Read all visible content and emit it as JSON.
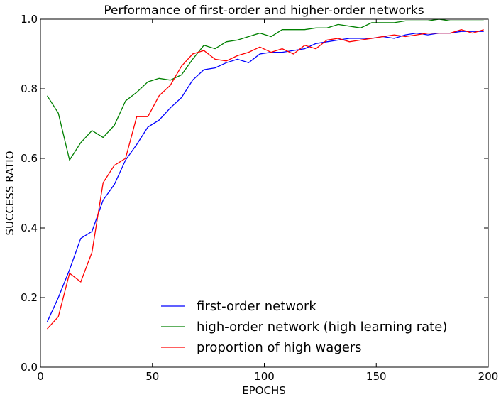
{
  "chart_data": {
    "type": "line",
    "title": "Performance of first-order and higher-order networks",
    "xlabel": "EPOCHS",
    "ylabel": "SUCCESS RATIO",
    "xlim": [
      0,
      200
    ],
    "ylim": [
      0.0,
      1.0
    ],
    "xticks": [
      "0",
      "50",
      "100",
      "150",
      "200"
    ],
    "yticks": [
      "0.0",
      "0.2",
      "0.4",
      "0.6",
      "0.8",
      "1.0"
    ],
    "grid": false,
    "legend_position": "bottom-center",
    "x": [
      3,
      8,
      13,
      18,
      23,
      28,
      33,
      38,
      43,
      48,
      53,
      58,
      63,
      68,
      73,
      78,
      83,
      88,
      93,
      98,
      103,
      108,
      113,
      118,
      123,
      128,
      133,
      138,
      143,
      148,
      153,
      158,
      163,
      168,
      173,
      178,
      183,
      188,
      193,
      198
    ],
    "series": [
      {
        "name": "first-order network",
        "color": "#0000ff",
        "values": [
          0.13,
          0.2,
          0.28,
          0.37,
          0.39,
          0.48,
          0.525,
          0.595,
          0.64,
          0.69,
          0.71,
          0.745,
          0.775,
          0.825,
          0.855,
          0.86,
          0.875,
          0.885,
          0.875,
          0.9,
          0.905,
          0.905,
          0.91,
          0.915,
          0.93,
          0.935,
          0.94,
          0.945,
          0.945,
          0.945,
          0.95,
          0.945,
          0.955,
          0.96,
          0.955,
          0.96,
          0.96,
          0.965,
          0.965,
          0.965
        ]
      },
      {
        "name": "high-order network (high learning rate)",
        "color": "#008000",
        "values": [
          0.78,
          0.73,
          0.595,
          0.645,
          0.68,
          0.66,
          0.695,
          0.765,
          0.79,
          0.82,
          0.83,
          0.825,
          0.84,
          0.885,
          0.925,
          0.915,
          0.935,
          0.94,
          0.95,
          0.96,
          0.95,
          0.97,
          0.97,
          0.97,
          0.975,
          0.975,
          0.985,
          0.98,
          0.975,
          0.99,
          0.99,
          0.99,
          0.995,
          0.995,
          0.995,
          1.0,
          0.995,
          0.995,
          0.995,
          0.995
        ]
      },
      {
        "name": "proportion of high wagers",
        "color": "#ff0000",
        "values": [
          0.11,
          0.145,
          0.27,
          0.245,
          0.33,
          0.53,
          0.58,
          0.6,
          0.72,
          0.72,
          0.78,
          0.81,
          0.865,
          0.9,
          0.91,
          0.885,
          0.88,
          0.895,
          0.905,
          0.92,
          0.905,
          0.915,
          0.9,
          0.925,
          0.915,
          0.94,
          0.945,
          0.935,
          0.94,
          0.945,
          0.95,
          0.955,
          0.95,
          0.955,
          0.96,
          0.96,
          0.96,
          0.97,
          0.96,
          0.97
        ]
      }
    ]
  }
}
